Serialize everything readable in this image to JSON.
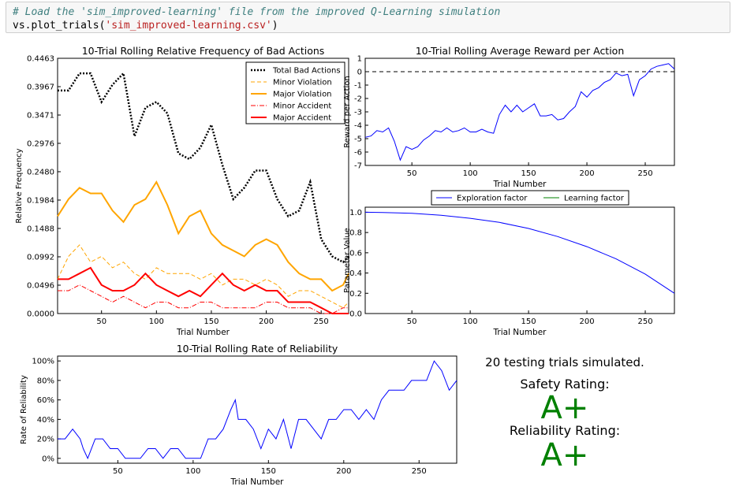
{
  "code": {
    "comment": "# Load the 'sim_improved-learning' file from the improved Q-Learning simulation",
    "fn": "vs.plot_trials",
    "open_paren": "(",
    "arg": "'sim_improved-learning.csv'",
    "close_paren": ")"
  },
  "summary": {
    "trials_text": "20 testing trials simulated.",
    "safety_label": "Safety Rating:",
    "safety_grade": "A+",
    "reliability_label": "Reliability Rating:",
    "reliability_grade": "A+"
  },
  "chart_data": [
    {
      "type": "line",
      "title": "10-Trial Rolling Relative Frequency of Bad Actions",
      "xlabel": "Trial Number",
      "ylabel": "Relative Frequency",
      "xlim": [
        10,
        275
      ],
      "ylim": [
        0,
        0.4463
      ],
      "xticks": [
        50,
        100,
        150,
        200,
        250
      ],
      "yticks": [
        "0.0000",
        "0.0496",
        "0.0992",
        "0.1488",
        "0.1984",
        "0.2480",
        "0.2976",
        "0.3471",
        "0.3967",
        "0.4463"
      ],
      "legend_position": "top-right",
      "series": [
        {
          "name": "Total Bad Actions",
          "color": "#000000",
          "style": "dotted",
          "x": [
            10,
            20,
            30,
            40,
            50,
            60,
            70,
            80,
            90,
            100,
            110,
            120,
            130,
            140,
            150,
            160,
            170,
            180,
            190,
            200,
            210,
            220,
            230,
            240,
            250,
            260,
            270,
            275
          ],
          "values": [
            0.39,
            0.39,
            0.42,
            0.42,
            0.37,
            0.4,
            0.42,
            0.31,
            0.36,
            0.37,
            0.35,
            0.28,
            0.27,
            0.29,
            0.33,
            0.26,
            0.2,
            0.22,
            0.25,
            0.25,
            0.2,
            0.17,
            0.18,
            0.23,
            0.13,
            0.1,
            0.09,
            0.1
          ]
        },
        {
          "name": "Minor Violation",
          "color": "#ffa500",
          "style": "dashed",
          "x": [
            10,
            20,
            30,
            40,
            50,
            60,
            70,
            80,
            90,
            100,
            110,
            120,
            130,
            140,
            150,
            160,
            170,
            180,
            190,
            200,
            210,
            220,
            230,
            240,
            250,
            260,
            270,
            275
          ],
          "values": [
            0.06,
            0.1,
            0.12,
            0.09,
            0.1,
            0.08,
            0.09,
            0.07,
            0.06,
            0.08,
            0.07,
            0.07,
            0.07,
            0.06,
            0.07,
            0.05,
            0.06,
            0.06,
            0.05,
            0.06,
            0.05,
            0.03,
            0.04,
            0.04,
            0.03,
            0.02,
            0.01,
            0.02
          ]
        },
        {
          "name": "Major Violation",
          "color": "#ffa500",
          "style": "solid",
          "x": [
            10,
            20,
            30,
            40,
            50,
            60,
            70,
            80,
            90,
            100,
            110,
            120,
            130,
            140,
            150,
            160,
            170,
            180,
            190,
            200,
            210,
            220,
            230,
            240,
            250,
            260,
            270,
            275
          ],
          "values": [
            0.17,
            0.2,
            0.22,
            0.21,
            0.21,
            0.18,
            0.16,
            0.19,
            0.2,
            0.23,
            0.19,
            0.14,
            0.17,
            0.18,
            0.14,
            0.12,
            0.11,
            0.1,
            0.12,
            0.13,
            0.12,
            0.09,
            0.07,
            0.06,
            0.06,
            0.04,
            0.05,
            0.07
          ]
        },
        {
          "name": "Minor Accident",
          "color": "#ff0000",
          "style": "dashdot",
          "x": [
            10,
            20,
            30,
            40,
            50,
            60,
            70,
            80,
            90,
            100,
            110,
            120,
            130,
            140,
            150,
            160,
            170,
            180,
            190,
            200,
            210,
            220,
            230,
            240,
            250,
            260,
            270,
            275
          ],
          "values": [
            0.04,
            0.04,
            0.05,
            0.04,
            0.03,
            0.02,
            0.03,
            0.02,
            0.01,
            0.02,
            0.02,
            0.01,
            0.01,
            0.02,
            0.02,
            0.01,
            0.01,
            0.01,
            0.01,
            0.02,
            0.02,
            0.01,
            0.01,
            0.01,
            0.0,
            0.0,
            0.01,
            0.01
          ]
        },
        {
          "name": "Major Accident",
          "color": "#ff0000",
          "style": "solid",
          "x": [
            10,
            20,
            30,
            40,
            50,
            60,
            70,
            80,
            90,
            100,
            110,
            120,
            130,
            140,
            150,
            160,
            170,
            180,
            190,
            200,
            210,
            220,
            230,
            240,
            250,
            260,
            270,
            275
          ],
          "values": [
            0.06,
            0.06,
            0.07,
            0.08,
            0.05,
            0.04,
            0.04,
            0.05,
            0.07,
            0.05,
            0.04,
            0.03,
            0.04,
            0.03,
            0.05,
            0.07,
            0.05,
            0.04,
            0.05,
            0.04,
            0.04,
            0.02,
            0.02,
            0.02,
            0.01,
            0.0,
            0.0,
            0.0
          ]
        }
      ]
    },
    {
      "type": "line",
      "title": "10-Trial Rolling Average Reward per Action",
      "xlabel": "Trial Number",
      "ylabel": "Reward per Action",
      "xlim": [
        10,
        275
      ],
      "ylim": [
        -7,
        1
      ],
      "xticks": [
        50,
        100,
        150,
        200,
        250
      ],
      "yticks": [
        -7,
        -6,
        -5,
        -4,
        -3,
        -2,
        -1,
        0,
        1
      ],
      "reference_line": 0,
      "series": [
        {
          "name": "",
          "color": "#0000ff",
          "x": [
            10,
            15,
            20,
            25,
            30,
            35,
            40,
            45,
            50,
            55,
            60,
            65,
            70,
            75,
            80,
            85,
            90,
            95,
            100,
            105,
            110,
            115,
            120,
            125,
            130,
            135,
            140,
            145,
            150,
            155,
            160,
            165,
            170,
            175,
            180,
            185,
            190,
            195,
            200,
            205,
            210,
            215,
            220,
            225,
            230,
            235,
            240,
            245,
            250,
            255,
            260,
            265,
            270,
            275
          ],
          "values": [
            -4.9,
            -4.8,
            -4.4,
            -4.5,
            -4.2,
            -5.2,
            -6.6,
            -5.6,
            -5.8,
            -5.6,
            -5.1,
            -4.8,
            -4.4,
            -4.5,
            -4.2,
            -4.5,
            -4.4,
            -4.2,
            -4.5,
            -4.5,
            -4.3,
            -4.5,
            -4.6,
            -3.2,
            -2.5,
            -3.0,
            -2.5,
            -3.0,
            -2.7,
            -2.4,
            -3.3,
            -3.3,
            -3.2,
            -3.6,
            -3.5,
            -3.0,
            -2.6,
            -1.5,
            -1.9,
            -1.4,
            -1.2,
            -0.8,
            -0.6,
            -0.1,
            -0.3,
            -0.2,
            -1.8,
            -0.6,
            -0.3,
            0.2,
            0.4,
            0.5,
            0.6,
            0.2
          ]
        }
      ]
    },
    {
      "type": "line",
      "title": "",
      "xlabel": "Trial Number",
      "ylabel": "Parameter Value",
      "xlim": [
        10,
        275
      ],
      "ylim": [
        0,
        1.05
      ],
      "xticks": [
        50,
        100,
        150,
        200,
        250
      ],
      "yticks": [
        0.0,
        0.2,
        0.4,
        0.6,
        0.8,
        1.0
      ],
      "legend_position": "top-center",
      "series": [
        {
          "name": "Exploration factor",
          "color": "#0000ff",
          "x": [
            10,
            25,
            50,
            75,
            100,
            125,
            150,
            175,
            200,
            225,
            250,
            275
          ],
          "values": [
            1.0,
            0.998,
            0.99,
            0.97,
            0.94,
            0.9,
            0.84,
            0.76,
            0.66,
            0.54,
            0.39,
            0.2
          ]
        },
        {
          "name": "Learning factor",
          "color": "#008000",
          "x": [],
          "values": []
        }
      ]
    },
    {
      "type": "line",
      "title": "10-Trial Rolling Rate of Reliability",
      "xlabel": "Trial Number",
      "ylabel": "Rate of Reliability",
      "xlim": [
        10,
        275
      ],
      "ylim": [
        -5,
        105
      ],
      "xticks": [
        50,
        100,
        150,
        200,
        250
      ],
      "yticks": [
        "0%",
        "20%",
        "40%",
        "60%",
        "80%",
        "100%"
      ],
      "series": [
        {
          "name": "",
          "color": "#0000ff",
          "x": [
            10,
            15,
            20,
            25,
            27,
            30,
            35,
            40,
            45,
            50,
            55,
            60,
            65,
            70,
            75,
            80,
            85,
            90,
            95,
            100,
            105,
            110,
            115,
            120,
            125,
            128,
            130,
            135,
            140,
            145,
            150,
            155,
            160,
            165,
            170,
            175,
            180,
            185,
            190,
            195,
            200,
            205,
            210,
            215,
            220,
            225,
            230,
            235,
            240,
            245,
            250,
            255,
            260,
            265,
            270,
            275
          ],
          "values": [
            20,
            20,
            30,
            20,
            10,
            0,
            20,
            20,
            10,
            10,
            0,
            0,
            0,
            10,
            10,
            0,
            10,
            10,
            0,
            0,
            0,
            20,
            20,
            30,
            50,
            60,
            40,
            40,
            30,
            10,
            30,
            20,
            40,
            10,
            40,
            40,
            30,
            20,
            40,
            40,
            50,
            50,
            40,
            50,
            40,
            60,
            70,
            70,
            70,
            80,
            80,
            80,
            100,
            90,
            70,
            80
          ]
        }
      ]
    }
  ]
}
